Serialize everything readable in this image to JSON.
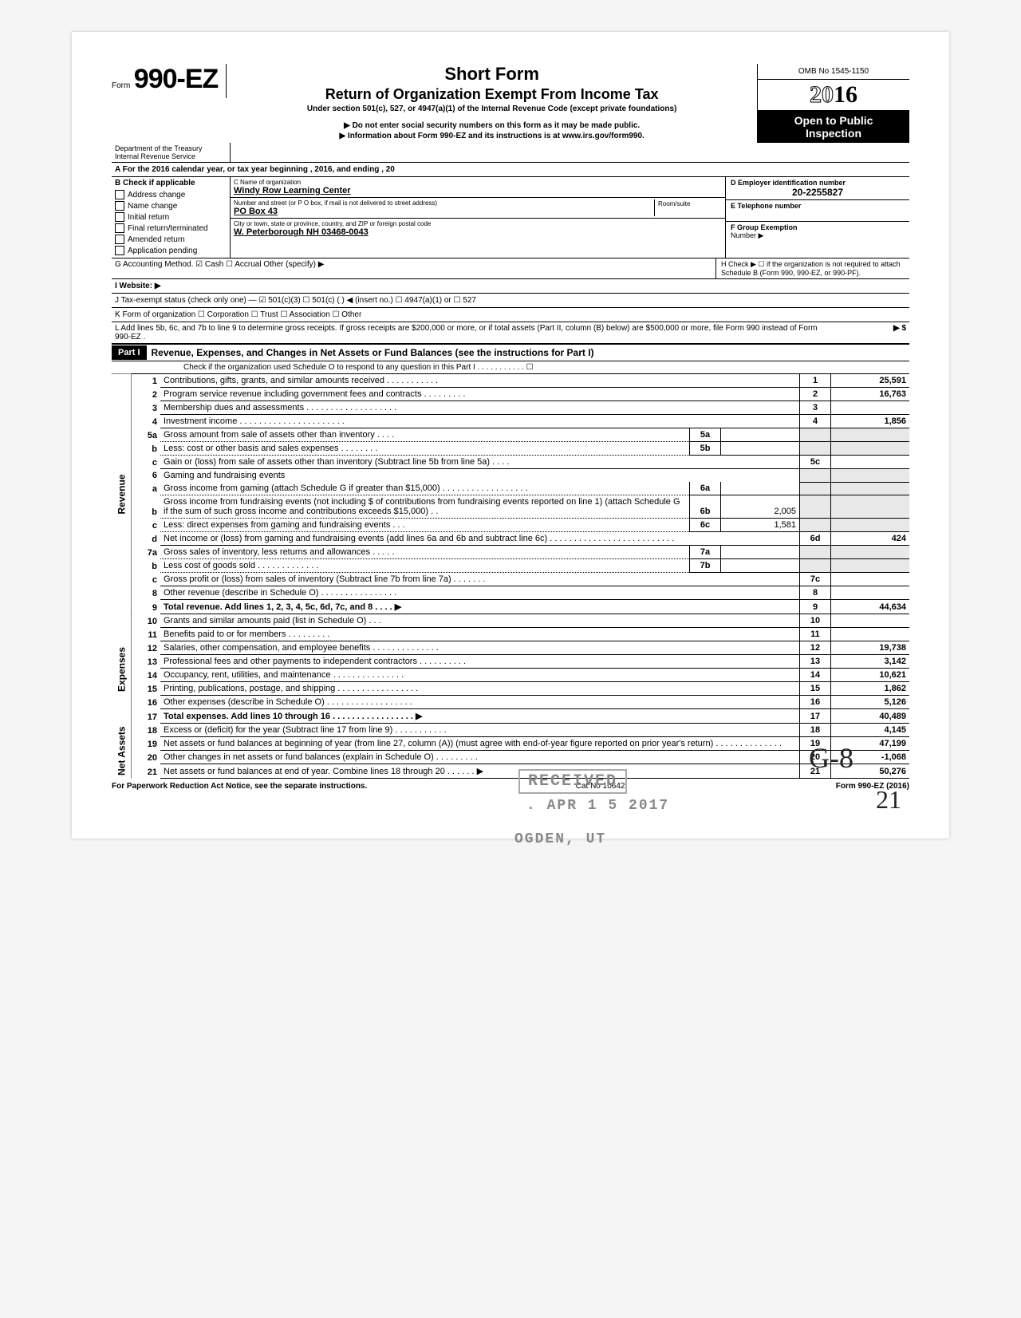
{
  "form": {
    "prefix": "Form",
    "number": "990-EZ",
    "title": "Short Form",
    "subtitle": "Return of Organization Exempt From Income Tax",
    "under": "Under section 501(c), 527, or 4947(a)(1) of the Internal Revenue Code (except private foundations)",
    "note1": "▶ Do not enter social security numbers on this form as it may be made public.",
    "note2": "▶ Information about Form 990-EZ and its instructions is at www.irs.gov/form990.",
    "omb": "OMB No 1545-1150",
    "year_outline": "20",
    "year_bold": "16",
    "open1": "Open to Public",
    "open2": "Inspection",
    "dept": "Department of the Treasury\nInternal Revenue Service"
  },
  "periodA": "A  For the 2016 calendar year, or tax year beginning                                                              , 2016, and ending                                                       , 20",
  "sectionB": {
    "label": "B  Check if applicable",
    "items": [
      "Address change",
      "Name change",
      "Initial return",
      "Final return/terminated",
      "Amended return",
      "Application pending"
    ]
  },
  "sectionC": {
    "name_lbl": "C  Name of organization",
    "name": "Windy Row Learning Center",
    "addr_lbl": "Number and street (or P O  box, if mail is not delivered to street address)",
    "room_lbl": "Room/suite",
    "addr": "PO Box 43",
    "city_lbl": "City or town, state or province, country, and ZIP or foreign postal code",
    "city": "W. Peterborough NH 03468-0043"
  },
  "sectionD": {
    "lbl": "D Employer identification number",
    "val": "20-2255827"
  },
  "sectionE": {
    "lbl": "E Telephone number",
    "val": ""
  },
  "sectionF": {
    "lbl": "F  Group Exemption",
    "lbl2": "Number ▶"
  },
  "lineG": "G  Accounting Method.     ☑ Cash     ☐ Accrual    Other (specify) ▶",
  "lineH": "H  Check ▶ ☐ if the organization is not required to attach Schedule B (Form 990, 990-EZ, or 990-PF).",
  "lineI": "I   Website: ▶",
  "lineJ": "J  Tax-exempt status (check only one) —  ☑ 501(c)(3)    ☐ 501(c) (         ) ◀ (insert no.) ☐ 4947(a)(1) or   ☐ 527",
  "lineK": "K  Form of organization     ☐ Corporation     ☐ Trust                  ☐ Association        ☐ Other",
  "lineL": "L  Add lines 5b, 6c, and 7b to line 9 to determine gross receipts. If gross receipts are $200,000 or more, or if total assets (Part II, column (B) below) are $500,000 or more, file Form 990 instead of Form 990-EZ .",
  "lineL_arrow": "▶    $",
  "part1": {
    "label": "Part I",
    "title": "Revenue, Expenses, and Changes in Net Assets or Fund Balances (see the instructions for Part I)",
    "check": "Check if the organization used Schedule O to respond to any question in this Part I  .  .  .  .  .  .  .  .  .  .  .   ☐"
  },
  "sidebars": {
    "revenue": "Revenue",
    "expenses": "Expenses",
    "netassets": "Net Assets"
  },
  "rows": [
    {
      "n": "1",
      "desc": "Contributions, gifts, grants, and similar amounts received .   .   .   .           .   .   .   .   .   .   .",
      "no": "1",
      "val": "25,591"
    },
    {
      "n": "2",
      "desc": "Program service revenue including government fees and contracts    .   .   .   .   .   .   .   .   .",
      "no": "2",
      "val": "16,763"
    },
    {
      "n": "3",
      "desc": "Membership dues and assessments .   .   .   .   .   .   .   .   .   .   .   .   .   .   .   .   .   .   .",
      "no": "3",
      "val": ""
    },
    {
      "n": "4",
      "desc": "Investment income    .   .   .   .   .   .      .   .   .   .   .   .   .   .   .   .   .   .   .   .   .   .",
      "no": "4",
      "val": "1,856"
    },
    {
      "n": "5a",
      "desc": "Gross amount from sale of assets other than inventory    .   .   .   .",
      "sub": "5a",
      "subval": ""
    },
    {
      "n": "b",
      "desc": "Less: cost or other basis and sales expenses .   .   .   .   .   .   .   .",
      "sub": "5b",
      "subval": ""
    },
    {
      "n": "c",
      "desc": "Gain or (loss) from sale of assets other than inventory (Subtract line 5b from line 5a)  .   .   .   .",
      "no": "5c",
      "val": ""
    },
    {
      "n": "6",
      "desc": "Gaming and fundraising events"
    },
    {
      "n": "a",
      "desc": "Gross income from gaming (attach Schedule G if greater than $15,000) .   .   .   .   .   .   .   .   .   .   .   .   .   .   .   .   .   .",
      "sub": "6a",
      "subval": ""
    },
    {
      "n": "b",
      "desc": "Gross income from fundraising events (not including  $                       of contributions from fundraising events reported on line 1) (attach Schedule G if the sum of such gross income and contributions exceeds $15,000)  .   .",
      "sub": "6b",
      "subval": "2,005"
    },
    {
      "n": "c",
      "desc": "Less: direct expenses from gaming and fundraising events    .   .   .",
      "sub": "6c",
      "subval": "1,581"
    },
    {
      "n": "d",
      "desc": "Net income or (loss) from gaming and fundraising events (add lines 6a and 6b and subtract line 6c)      .   .   .   .   .   .      .   .   .   .   .   .   .   .   .   .   .   .   .   .   .   .   .   .   .   .",
      "no": "6d",
      "val": "424"
    },
    {
      "n": "7a",
      "desc": "Gross sales of inventory, less returns and allowances    .   .   .   .   .",
      "sub": "7a",
      "subval": ""
    },
    {
      "n": "b",
      "desc": "Less  cost of goods sold           .   .   .   .   .   .   .   .   .   .   .   .   .",
      "sub": "7b",
      "subval": ""
    },
    {
      "n": "c",
      "desc": "Gross profit or (loss) from sales of inventory (Subtract line 7b from line 7a)   .   .   .   .   .   .   .",
      "no": "7c",
      "val": ""
    },
    {
      "n": "8",
      "desc": "Other revenue (describe in Schedule O) .   .   .   .   .   .   .   .     .           .   .   .   .   .       .   .",
      "no": "8",
      "val": ""
    },
    {
      "n": "9",
      "desc": "Total revenue. Add lines 1, 2, 3, 4, 5c, 6d, 7c, and 8    .   .   .     .                                            ▶",
      "no": "9",
      "val": "44,634",
      "bold": true
    },
    {
      "n": "10",
      "desc": "Grants and similar amounts paid (list in Schedule O)    .   .   .",
      "no": "10",
      "val": ""
    },
    {
      "n": "11",
      "desc": "Benefits paid to or for members    .   .   .   .   .   .   .   .   .",
      "no": "11",
      "val": ""
    },
    {
      "n": "12",
      "desc": "Salaries, other compensation, and employee benefits  .   .   .        .   .   .   .   .   .   .   .   .   .   .",
      "no": "12",
      "val": "19,738"
    },
    {
      "n": "13",
      "desc": "Professional fees and other payments to independent contractors  .   .   .   .   .   .   .   .   .   .",
      "no": "13",
      "val": "3,142"
    },
    {
      "n": "14",
      "desc": "Occupancy, rent, utilities, and maintenance     .   .   .   .   .             .   .   .   .   .      .   .   .   .   .",
      "no": "14",
      "val": "10,621"
    },
    {
      "n": "15",
      "desc": "Printing, publications, postage, and shipping  .   .   .   .   .   .   .   .   .   .   .   .   .   .   .   .   .",
      "no": "15",
      "val": "1,862"
    },
    {
      "n": "16",
      "desc": "Other expenses (describe in Schedule O)   .   .   .   .   .   .   .   .   .   .   .   .   .   .   .   .   .   .",
      "no": "16",
      "val": "5,126"
    },
    {
      "n": "17",
      "desc": "Total expenses. Add lines 10 through 16  .   .   .   .   .   .   .   .   .   .   .   .   .   .   .   .   .  ▶",
      "no": "17",
      "val": "40,489",
      "bold": true
    },
    {
      "n": "18",
      "desc": "Excess or (deficit) for the year (Subtract line 17 from line 9)    .   .        .   .   .   .   .   .   .   .   .",
      "no": "18",
      "val": "4,145"
    },
    {
      "n": "19",
      "desc": "Net assets or fund balances at beginning of year (from line 27, column (A)) (must agree with end-of-year figure reported on prior year's return)      .   .   .   .   .   .   .   .   .   .   .   .   .   .",
      "no": "19",
      "val": "47,199"
    },
    {
      "n": "20",
      "desc": "Other changes in net assets or fund balances (explain in Schedule O) .   .   .   .   .   .   .   .   .",
      "no": "20",
      "val": "-1,068"
    },
    {
      "n": "21",
      "desc": "Net assets or fund balances at end of year. Combine lines 18 through 20    .   .   .   .   .   .  ▶",
      "no": "21",
      "val": "50,276"
    }
  ],
  "footer": {
    "left": "For Paperwork Reduction Act Notice, see the separate instructions.",
    "mid": "Cat No 10642I",
    "right": "Form 990-EZ (2016)"
  },
  "stamps": {
    "received": "RECEIVED",
    "date": ". APR 1 5 2017",
    "ogden": "OGDEN, UT"
  },
  "handwriting": {
    "g8": "G-8",
    "n21": "21"
  }
}
